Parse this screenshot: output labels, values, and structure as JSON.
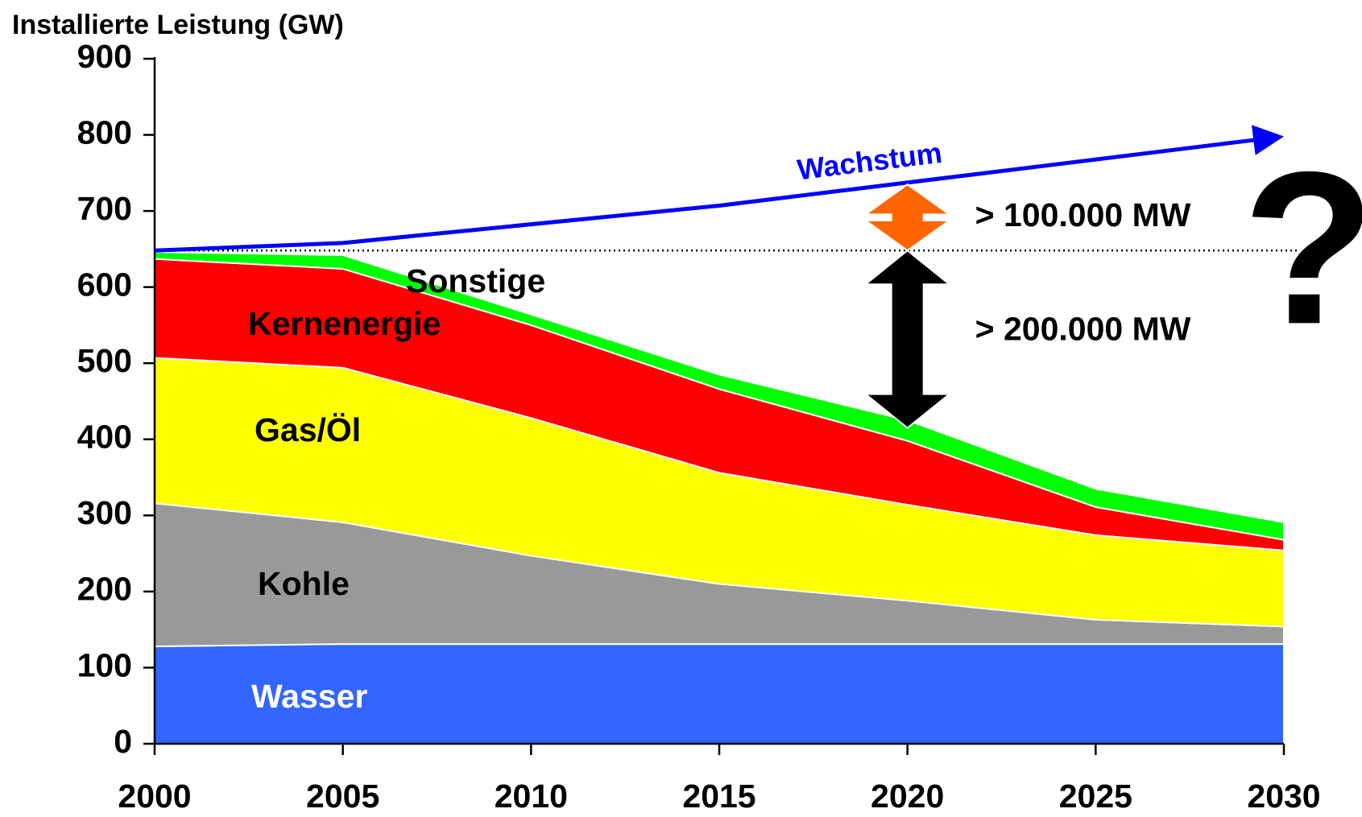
{
  "chart_data": {
    "type": "stacked_area",
    "title": "Installierte Leistung (GW)",
    "x": [
      2000,
      2005,
      2010,
      2015,
      2020,
      2025,
      2030
    ],
    "xlim": [
      2000,
      2030
    ],
    "xticks": [
      2000,
      2005,
      2010,
      2015,
      2020,
      2025,
      2030
    ],
    "ylim": [
      0,
      900
    ],
    "yticks": [
      0,
      100,
      200,
      300,
      400,
      500,
      600,
      700,
      800,
      900
    ],
    "series": [
      {
        "name": "Wasser",
        "color": "#3366ff",
        "label_color": "#ffffff",
        "values": [
          128,
          131,
          131,
          131,
          131,
          131,
          131
        ]
      },
      {
        "name": "Kohle",
        "color": "#999999",
        "label_color": "#000000",
        "values": [
          188,
          160,
          116,
          79,
          57,
          32,
          23
        ]
      },
      {
        "name": "Gas/Öl",
        "color": "#ffff00",
        "label_color": "#000000",
        "values": [
          191,
          203,
          181,
          146,
          126,
          111,
          100
        ]
      },
      {
        "name": "Kernenergie",
        "color": "#ff0000",
        "label_color": "#000000",
        "values": [
          130,
          130,
          122,
          110,
          84,
          37,
          14
        ]
      },
      {
        "name": "Sonstige",
        "color": "#00ff00",
        "label_color": "#000000",
        "values": [
          9,
          18,
          14,
          19,
          27,
          24,
          23
        ]
      }
    ],
    "growth_line": {
      "name": "Wachstum",
      "color": "#0000ff",
      "x": [
        2000,
        2005,
        2015,
        2030
      ],
      "values": [
        648,
        658,
        707,
        798
      ]
    },
    "reference_line": 648,
    "gap_arrows": [
      {
        "label": "> 100.000 MW",
        "x": 2020,
        "from": 648,
        "to": 735,
        "color": "#ff6600"
      },
      {
        "label": "> 200.000 MW",
        "x": 2020,
        "from": 415,
        "to": 648,
        "color": "#000000"
      }
    ],
    "annotation": "?"
  }
}
